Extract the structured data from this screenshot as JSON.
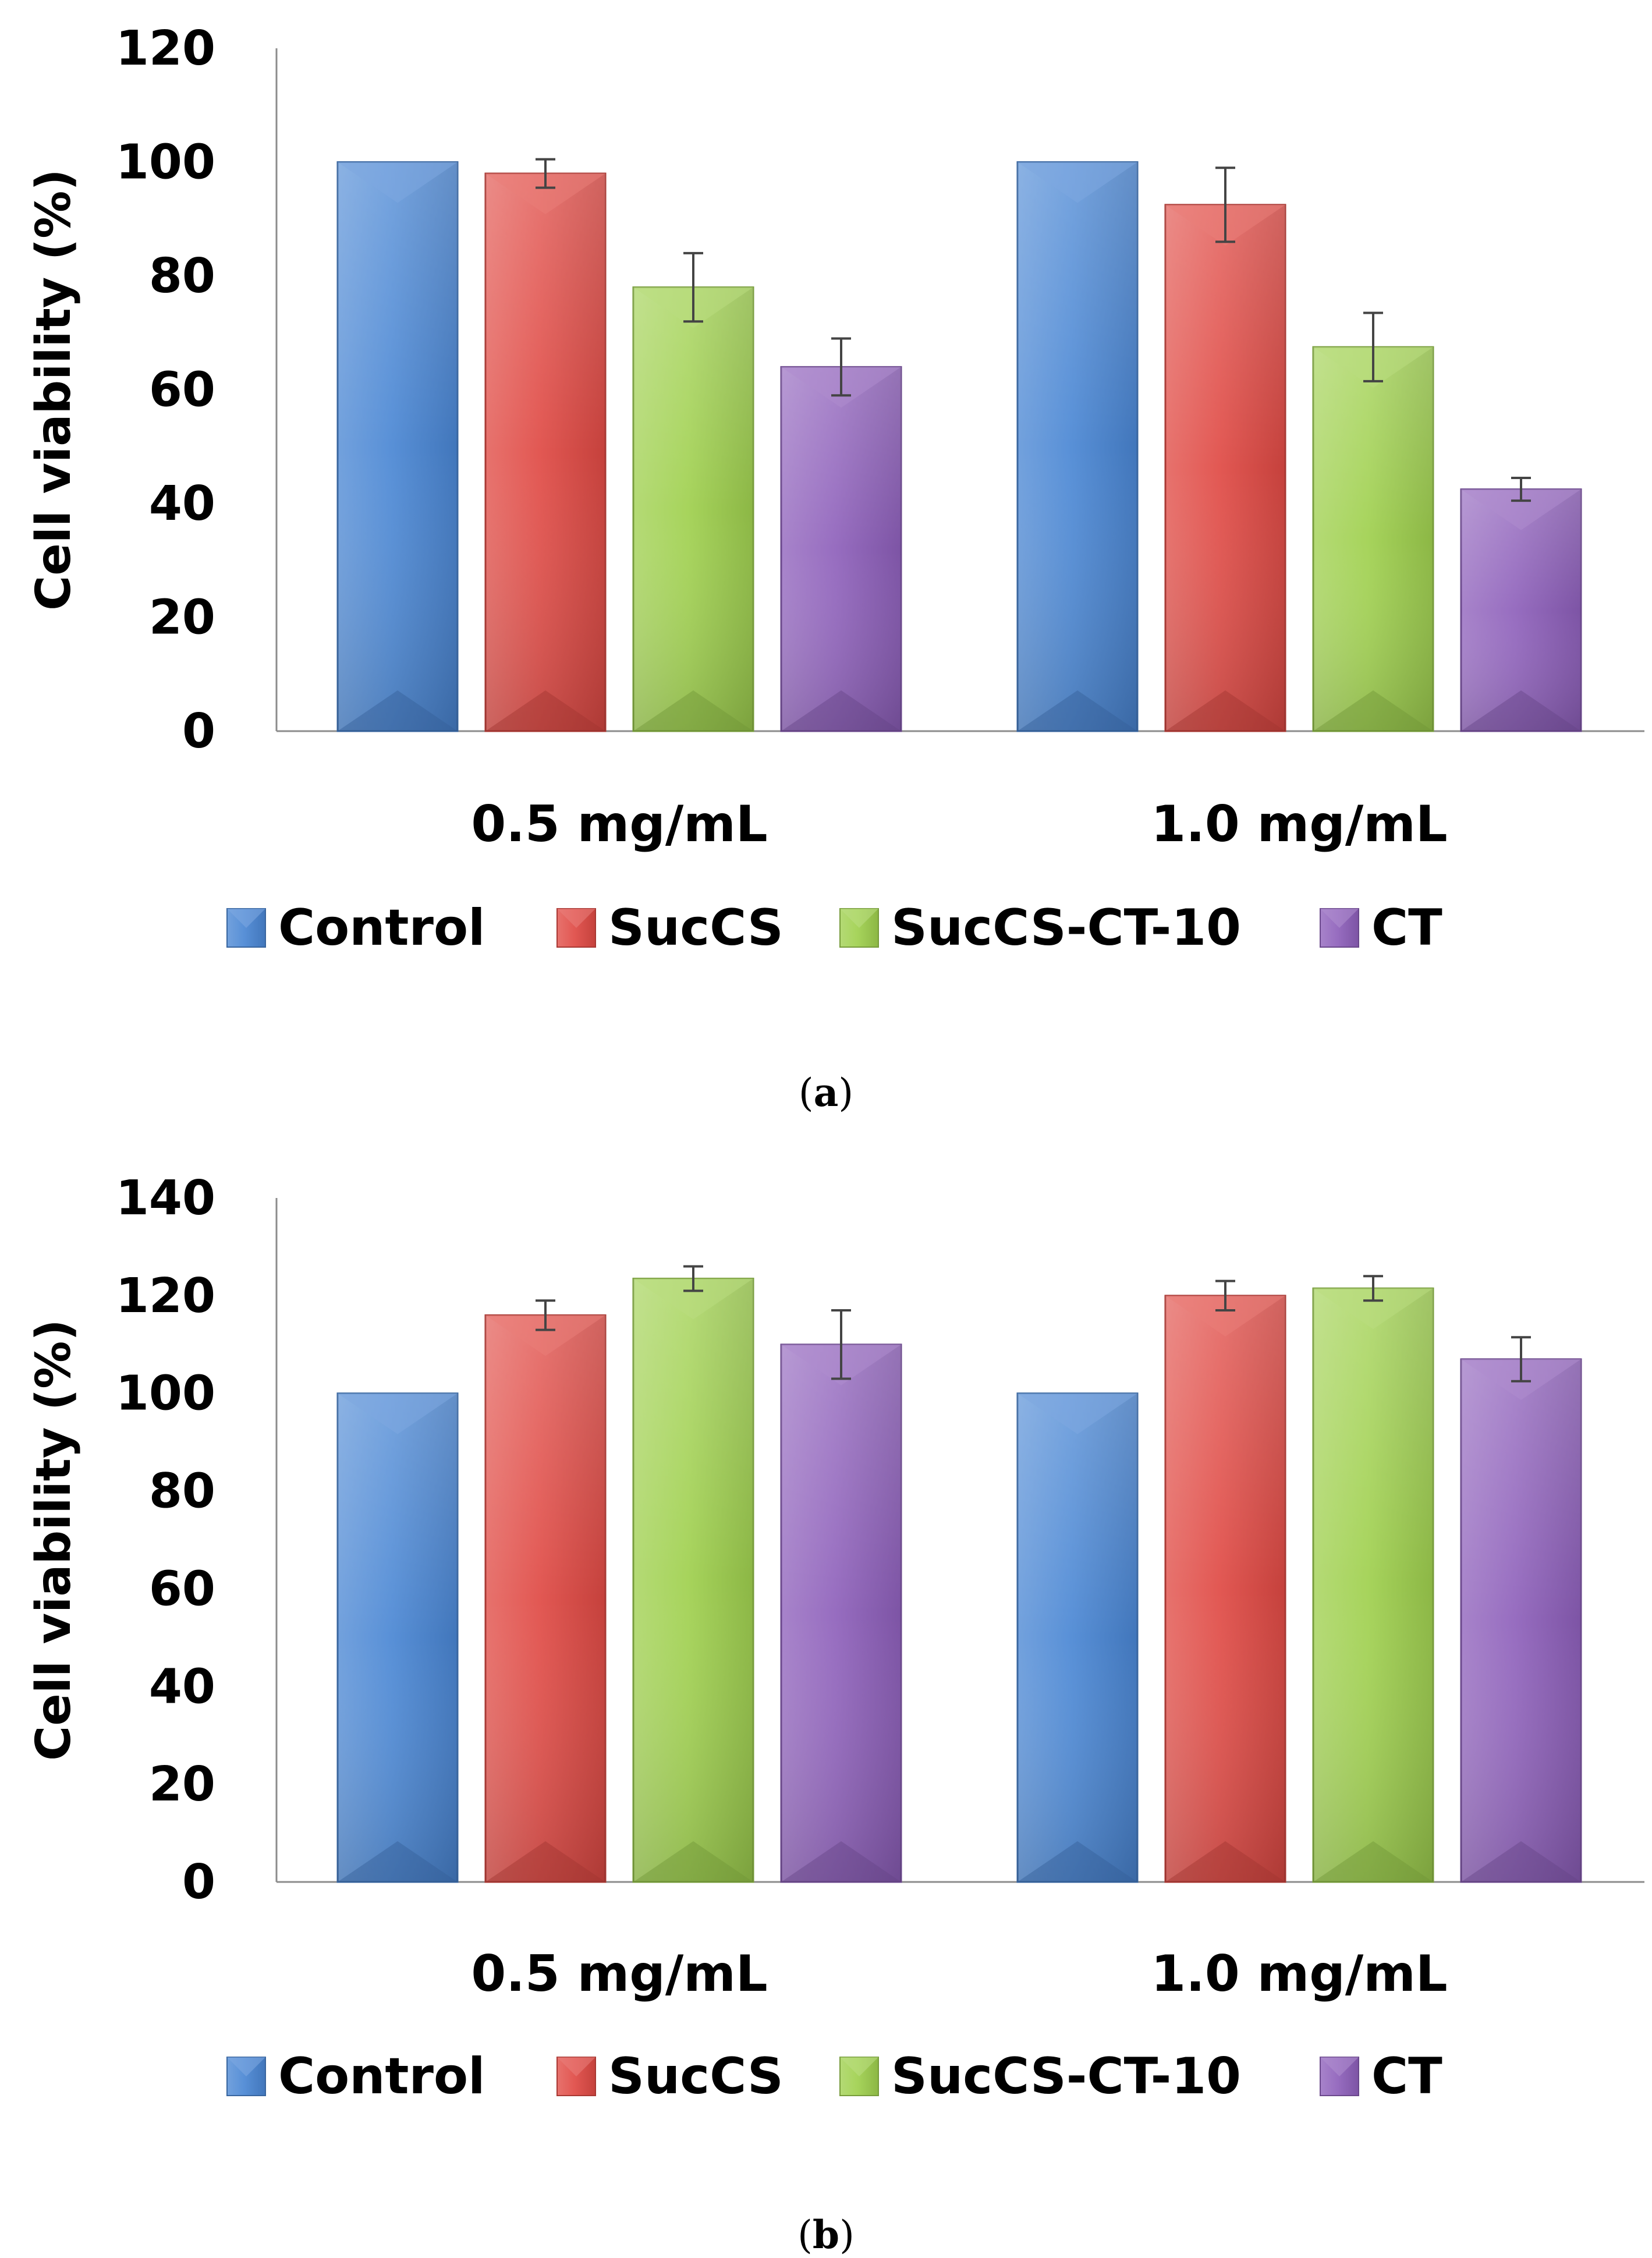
{
  "series_colors": {
    "Control": "#4a86d4",
    "SucCS": "#e04a44",
    "SucCS-CT-10": "#9fd04e",
    "CT": "#8e60bb"
  },
  "chart_data": [
    {
      "type": "bar",
      "panel": "a",
      "caption_label": "a",
      "ylabel": "Cell viability (%)",
      "ylim": [
        0,
        120
      ],
      "yticks": [
        0,
        20,
        40,
        60,
        80,
        100,
        120
      ],
      "categories": [
        "0.5 mg/mL",
        "1.0 mg/mL"
      ],
      "series": [
        {
          "name": "Control",
          "values": [
            100,
            100
          ],
          "errors": [
            0,
            0
          ]
        },
        {
          "name": "SucCS",
          "values": [
            98,
            92.5
          ],
          "errors": [
            2.5,
            6.5
          ]
        },
        {
          "name": "SucCS-CT-10",
          "values": [
            78,
            67.5
          ],
          "errors": [
            6,
            6
          ]
        },
        {
          "name": "CT",
          "values": [
            64,
            42.5
          ],
          "errors": [
            5,
            2
          ]
        }
      ],
      "legend": [
        "Control",
        "SucCS",
        "SucCS-CT-10",
        "CT"
      ],
      "legend_position": "bottom"
    },
    {
      "type": "bar",
      "panel": "b",
      "caption_label": "b",
      "ylabel": "Cell viability (%)",
      "ylim": [
        0,
        140
      ],
      "yticks": [
        0,
        20,
        40,
        60,
        80,
        100,
        120,
        140
      ],
      "categories": [
        "0.5 mg/mL",
        "1.0 mg/mL"
      ],
      "series": [
        {
          "name": "Control",
          "values": [
            100,
            100
          ],
          "errors": [
            0,
            0
          ]
        },
        {
          "name": "SucCS",
          "values": [
            116,
            120
          ],
          "errors": [
            3,
            3
          ]
        },
        {
          "name": "SucCS-CT-10",
          "values": [
            123.5,
            121.5
          ],
          "errors": [
            2.5,
            2.5
          ]
        },
        {
          "name": "CT",
          "values": [
            110,
            107
          ],
          "errors": [
            7,
            4.5
          ]
        }
      ],
      "legend": [
        "Control",
        "SucCS",
        "SucCS-CT-10",
        "CT"
      ],
      "legend_position": "bottom"
    }
  ]
}
